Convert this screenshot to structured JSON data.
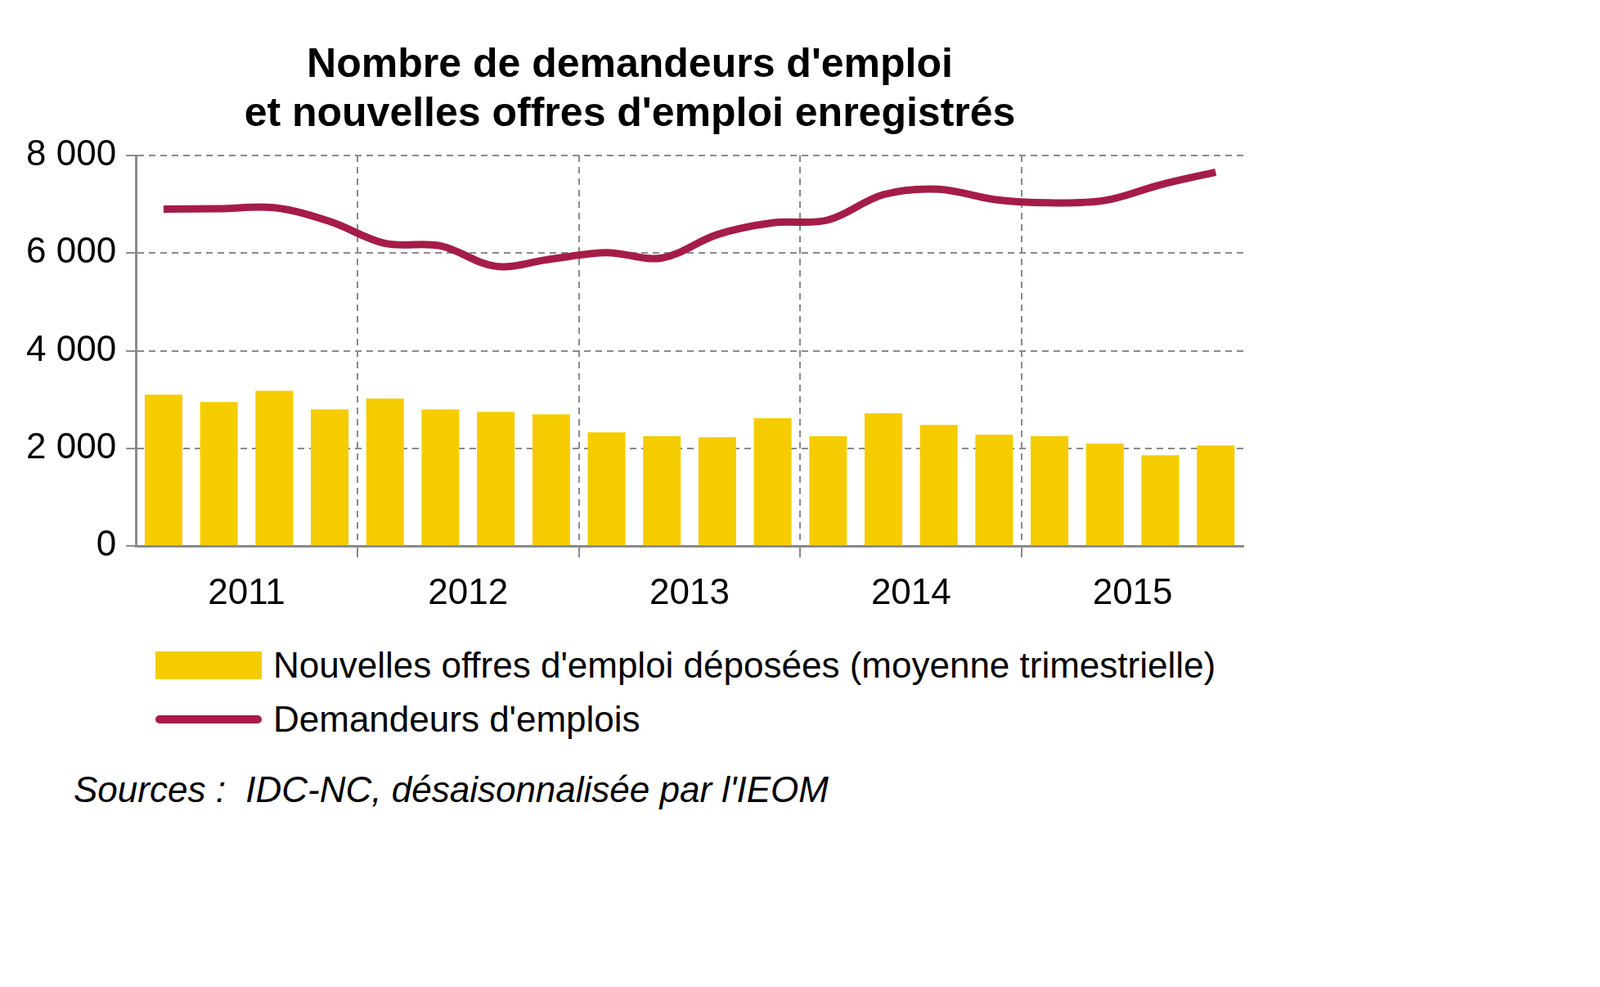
{
  "chart_data": {
    "type": "bar",
    "title": [
      "Nombre de demandeurs d'emploi",
      "et nouvelles offres d'emploi enregistrés"
    ],
    "categories": [
      null,
      "2011",
      null,
      null,
      null,
      "2012",
      null,
      null,
      null,
      "2013",
      null,
      null,
      null,
      "2014",
      null,
      null,
      null,
      "2015",
      null,
      null
    ],
    "series": [
      {
        "name": "Nouvelles offres d'emploi déposées (moyenne trimestrielle)",
        "type": "bar",
        "color": "#f5cc00",
        "values": [
          3100,
          2950,
          3180,
          2800,
          3020,
          2800,
          2750,
          2700,
          2330,
          2250,
          2230,
          2620,
          2250,
          2720,
          2480,
          2280,
          2250,
          2100,
          1860,
          2060
        ]
      },
      {
        "name": "Demandeurs d'emplois",
        "type": "line",
        "color": "#a51c48",
        "values": [
          6900,
          6910,
          6930,
          6650,
          6200,
          6150,
          5730,
          5880,
          6010,
          5900,
          6380,
          6620,
          6680,
          7200,
          7310,
          7100,
          7030,
          7080,
          7400,
          7660
        ]
      }
    ],
    "ylim": [
      0,
      8000
    ],
    "yticks": [
      0,
      {
        "value": 2000,
        "label": "2 000"
      },
      {
        "value": 4000,
        "label": "4 000"
      },
      {
        "value": 6000,
        "label": "6 000"
      },
      {
        "value": 8000,
        "label": "8 000"
      }
    ],
    "grid": true,
    "legend": "bottom",
    "source": "Sources :  IDC-NC, désaisonnalisée par l'IEOM"
  }
}
